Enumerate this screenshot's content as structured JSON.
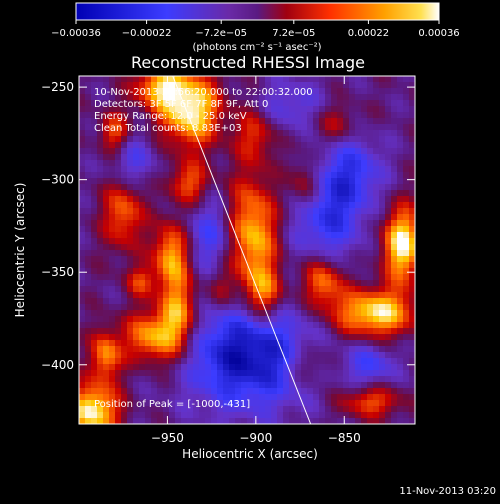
{
  "chart_data": {
    "type": "heatmap",
    "title": "Reconstructed RHESSI Image",
    "xlabel": "Heliocentric X (arcsec)",
    "ylabel": "Heliocentric Y (arcsec)",
    "xlim": [
      -1000,
      -810
    ],
    "ylim": [
      -432,
      -244
    ],
    "x_ticks": [
      -950,
      -900,
      -850
    ],
    "x_tick_labels": [
      "−950",
      "−900",
      "−850"
    ],
    "y_ticks": [
      -250,
      -300,
      -350,
      -400
    ],
    "y_tick_labels": [
      "−250",
      "−300",
      "−350",
      "−400"
    ],
    "colorbar": {
      "min": -0.00036,
      "max": 0.00036,
      "tick_values": [
        -0.00036,
        -0.00022,
        -7.2e-05,
        7.2e-05,
        0.00022,
        0.00036
      ],
      "tick_labels": [
        "−0.00036",
        "−0.00022",
        "−7.2e−05",
        "7.2e−05",
        "0.00022",
        "0.00036"
      ],
      "unit_label": "(photons cm⁻² s⁻¹ asec⁻²)"
    },
    "colors": {
      "negative_dark": "#0000b4",
      "negative": "#3c3cff",
      "zero": "#5a1a82",
      "low_positive": "#c80000",
      "mid_positive": "#ff6400",
      "high_positive": "#ffd800",
      "peak": "#ffffff"
    },
    "annotations": {
      "time_range": "10-Nov-2013 21:56:20.000 to 22:00:32.000",
      "detectors": "Detectors: 3F 5F 6F 7F 8F 9F, Att 0",
      "energy": "Energy Range: 12.0 - 25.0 keV",
      "clean": "Clean    Total counts: 8.83E+03",
      "peak_position": "Position of Peak = [-1000,-431]"
    },
    "limb_line": {
      "x": [
        -947,
        -869
      ],
      "y": [
        -244,
        -432
      ]
    },
    "sources": [
      {
        "x": -937,
        "y": -262,
        "amp": 1.0,
        "sx": 12,
        "sy": 14
      },
      {
        "x": -955,
        "y": -250,
        "amp": 0.7,
        "sx": 10,
        "sy": 8
      },
      {
        "x": -902,
        "y": -330,
        "amp": 0.85,
        "sx": 10,
        "sy": 22
      },
      {
        "x": -895,
        "y": -362,
        "amp": 0.6,
        "sx": 8,
        "sy": 10
      },
      {
        "x": -817,
        "y": -335,
        "amp": 1.0,
        "sx": 8,
        "sy": 14
      },
      {
        "x": -833,
        "y": -372,
        "amp": 0.95,
        "sx": 16,
        "sy": 9
      },
      {
        "x": -862,
        "y": -355,
        "amp": 0.7,
        "sx": 8,
        "sy": 10
      },
      {
        "x": -960,
        "y": -385,
        "amp": 0.75,
        "sx": 10,
        "sy": 10
      },
      {
        "x": -944,
        "y": -374,
        "amp": 0.8,
        "sx": 8,
        "sy": 16
      },
      {
        "x": -992,
        "y": -425,
        "amp": 1.0,
        "sx": 10,
        "sy": 10
      },
      {
        "x": -985,
        "y": -395,
        "amp": 0.7,
        "sx": 6,
        "sy": 10
      },
      {
        "x": -975,
        "y": -318,
        "amp": 0.6,
        "sx": 8,
        "sy": 14
      },
      {
        "x": -948,
        "y": -340,
        "amp": 0.75,
        "sx": 7,
        "sy": 12
      },
      {
        "x": -938,
        "y": -302,
        "amp": 0.55,
        "sx": 8,
        "sy": 8
      },
      {
        "x": -980,
        "y": -275,
        "amp": 0.55,
        "sx": 6,
        "sy": 8
      },
      {
        "x": -872,
        "y": -303,
        "amp": 0.5,
        "sx": 6,
        "sy": 10
      },
      {
        "x": -855,
        "y": -270,
        "amp": 0.35,
        "sx": 10,
        "sy": 8
      },
      {
        "x": -835,
        "y": -420,
        "amp": 0.55,
        "sx": 12,
        "sy": 6
      },
      {
        "x": -870,
        "y": -400,
        "amp": 0.4,
        "sx": 8,
        "sy": 8
      },
      {
        "x": -900,
        "y": -275,
        "amp": 0.45,
        "sx": 8,
        "sy": 10
      },
      {
        "x": -920,
        "y": -360,
        "amp": 0.3,
        "sx": 6,
        "sy": 8
      },
      {
        "x": -965,
        "y": -355,
        "amp": 0.45,
        "sx": 6,
        "sy": 6
      }
    ],
    "negative_regions": [
      {
        "x": -905,
        "y": -395,
        "amp": -0.9,
        "sx": 25,
        "sy": 20
      },
      {
        "x": -860,
        "y": -320,
        "amp": -0.6,
        "sx": 14,
        "sy": 18
      },
      {
        "x": -845,
        "y": -295,
        "amp": -0.5,
        "sx": 12,
        "sy": 14
      },
      {
        "x": -925,
        "y": -330,
        "amp": -0.45,
        "sx": 10,
        "sy": 14
      },
      {
        "x": -970,
        "y": -290,
        "amp": -0.4,
        "sx": 10,
        "sy": 10
      },
      {
        "x": -880,
        "y": -260,
        "amp": -0.35,
        "sx": 14,
        "sy": 10
      },
      {
        "x": -835,
        "y": -400,
        "amp": -0.45,
        "sx": 10,
        "sy": 8
      }
    ]
  },
  "footer": {
    "timestamp": "11-Nov-2013 03:20"
  }
}
